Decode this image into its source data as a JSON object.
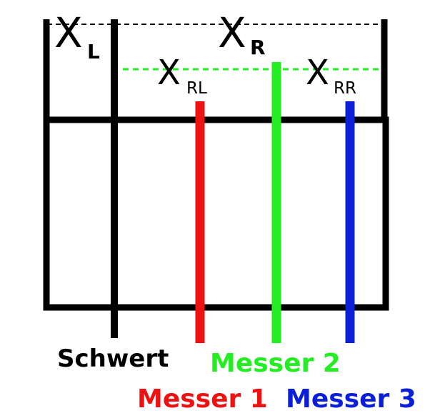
{
  "labels": {
    "x_l": {
      "main": "X",
      "sub": "L"
    },
    "x_r": {
      "main": "X",
      "sub": "R"
    },
    "x_rl": {
      "main": "X",
      "sub": "RL"
    },
    "x_rr": {
      "main": "X",
      "sub": "RR"
    }
  },
  "legend": {
    "schwert": {
      "text": "Schwert",
      "color": "#000000"
    },
    "messer2": {
      "text": "Messer 2",
      "color": "#22ee22"
    },
    "messer1": {
      "text": "Messer 1",
      "color": "#ee1111"
    },
    "messer3": {
      "text": "Messer 3",
      "color": "#0b1fd8"
    }
  },
  "colors": {
    "frame": "#000000",
    "dash_top": "#000000",
    "dash_green": "#22ee22"
  }
}
